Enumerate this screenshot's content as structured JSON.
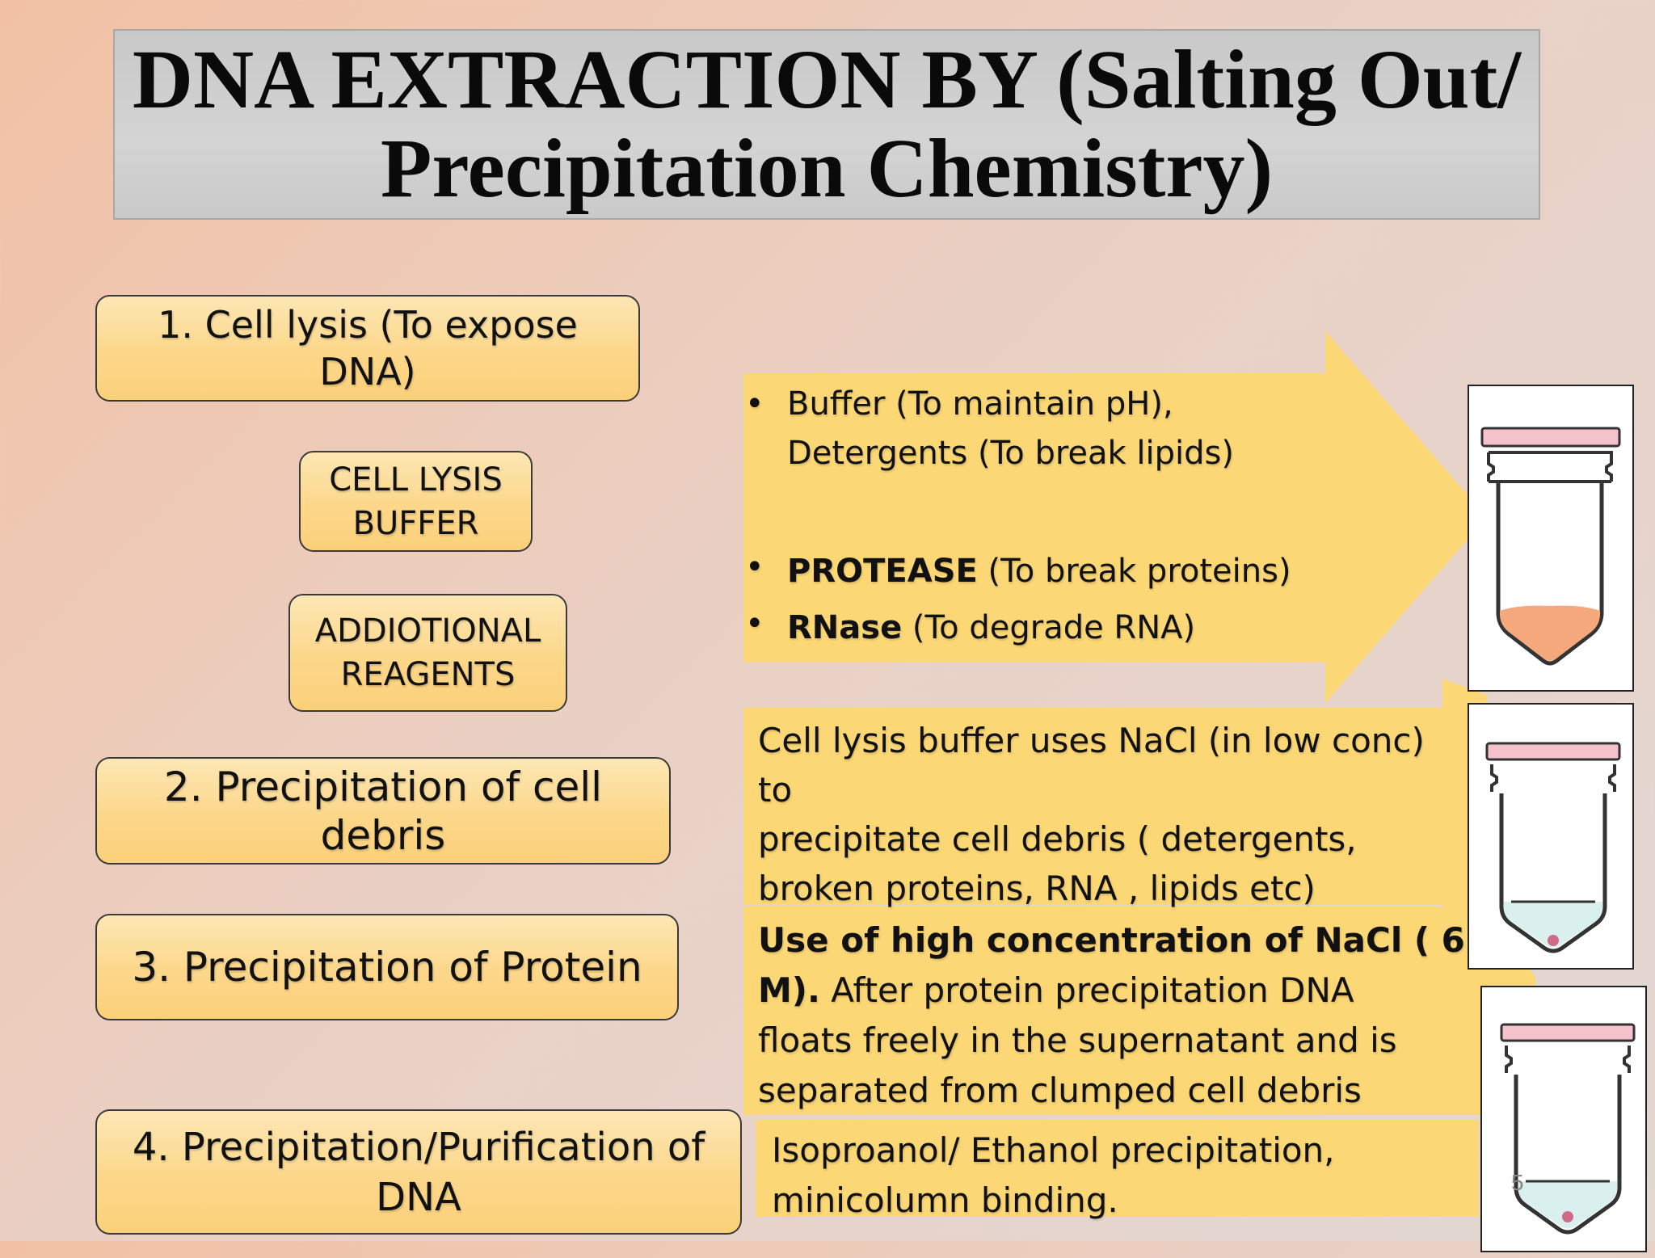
{
  "title": {
    "line1": "DNA EXTRACTION BY  (Salting Out/",
    "line2": "Precipitation Chemistry)"
  },
  "steps": {
    "step1": [
      "1. Cell lysis (To expose",
      "DNA)"
    ],
    "cell_lysis_buffer": [
      "CELL LYSIS",
      "BUFFER"
    ],
    "additional_reagents": [
      "ADDIOTIONAL",
      "REAGENTS"
    ],
    "step2": "2. Precipitation of cell debris",
    "step3": "3. Precipitation of Protein",
    "step4": [
      "4. Precipitation/Purification of",
      "DNA"
    ]
  },
  "panels": {
    "lysis": {
      "bullet1_line1": "Buffer (To maintain pH),",
      "bullet1_line2": "Detergents (To break lipids)",
      "bullet2_bold": "PROTEASE",
      "bullet2_rest": " (To break proteins)",
      "bullet3_bold": "RNase",
      "bullet3_rest": " (To degrade RNA)"
    },
    "debris": [
      "Cell lysis buffer uses NaCl (in low conc) to",
      "precipitate cell debris ( detergents,",
      "broken proteins, RNA , lipids etc)"
    ],
    "protein": {
      "line1_bold": "Use of high concentration of NaCl ( 6",
      "line2_bold": "M).",
      "line2_rest": " After protein precipitation DNA",
      "line3": "floats freely in the supernatant and is",
      "line4": "separated from  clumped cell debris"
    },
    "dna": [
      "Isoproanol/ Ethanol precipitation,",
      "minicolumn binding."
    ]
  },
  "slide_number": "5",
  "colors": {
    "panel_fill": "#fcd775",
    "step_fill": "#fcd88c",
    "tube_cap": "#f5c2cc",
    "lysate": "#f4a87c",
    "supernatant": "#d9f0ee",
    "pellet": "#d06a86"
  }
}
